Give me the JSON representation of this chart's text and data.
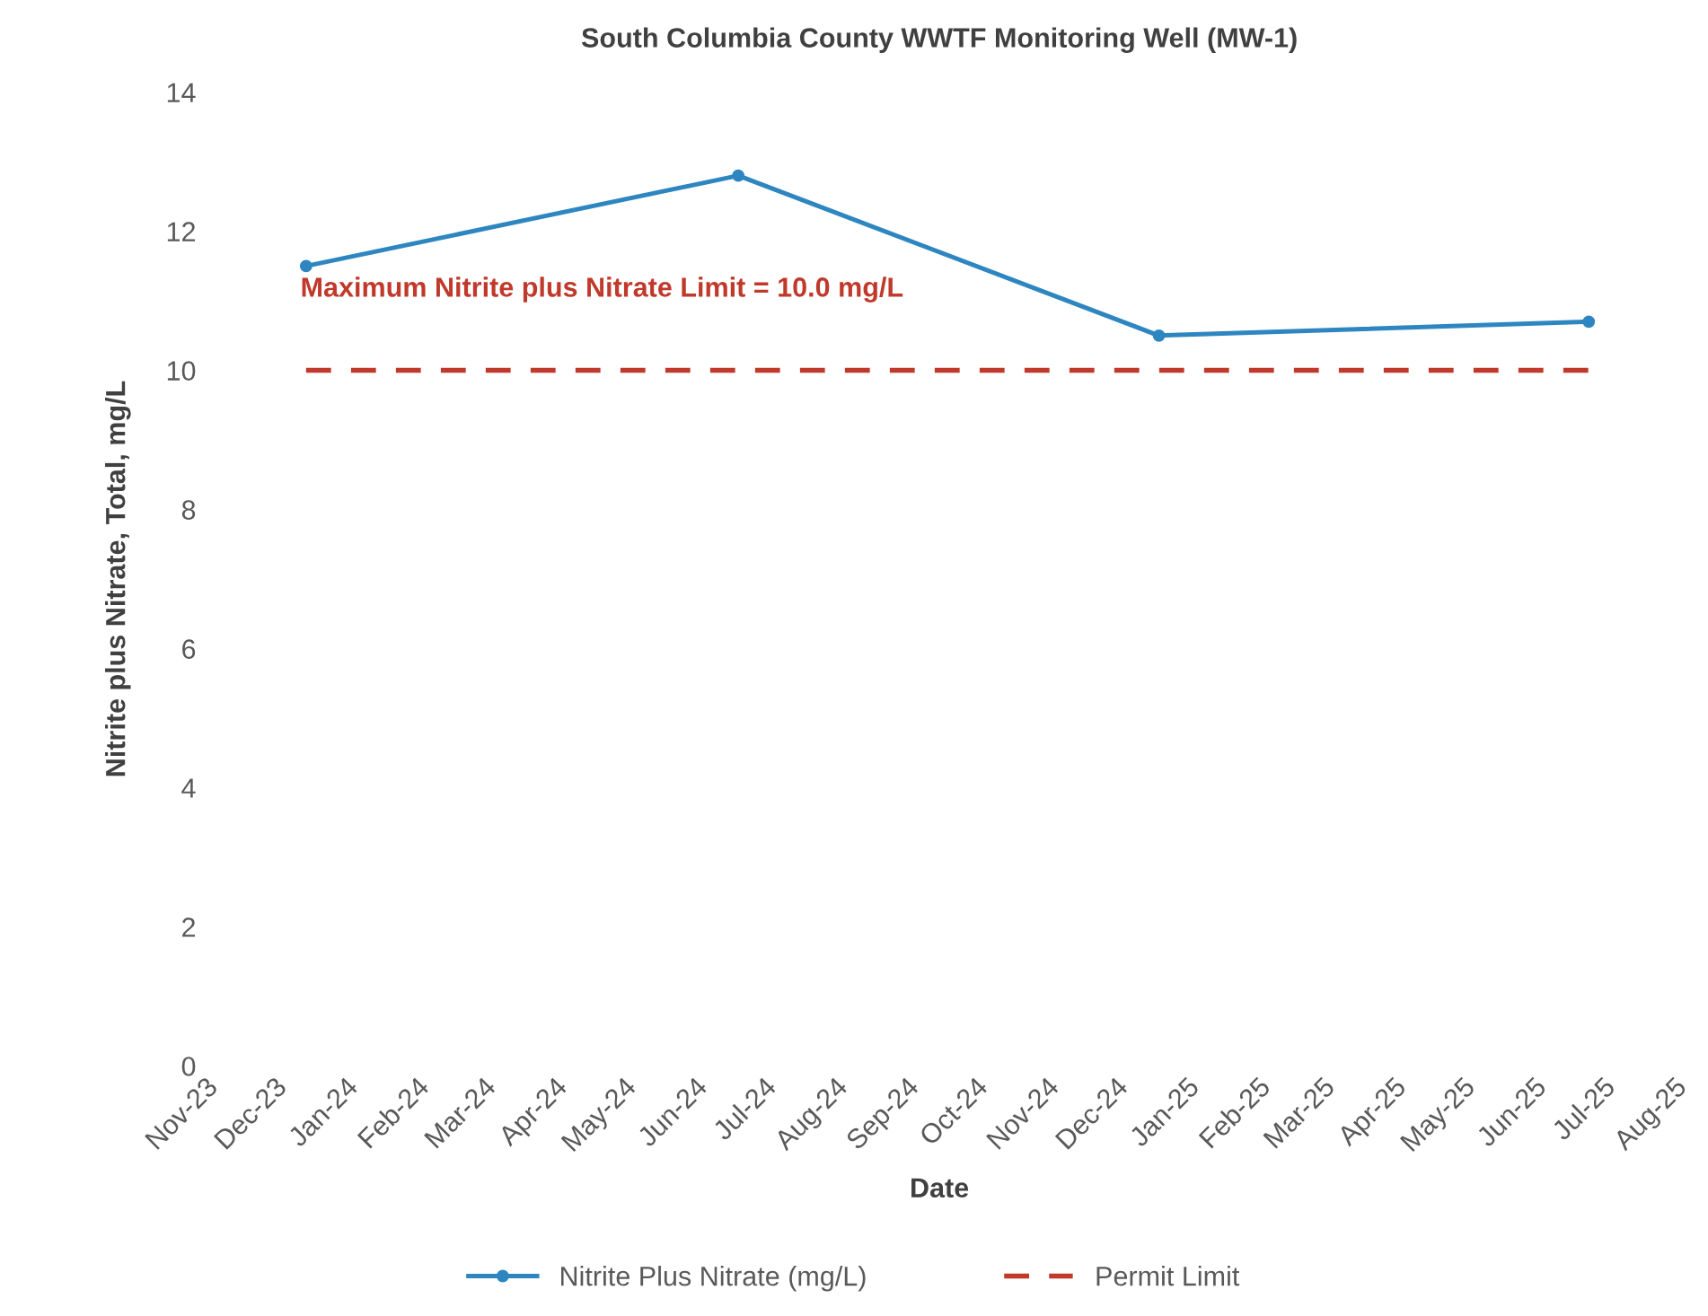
{
  "chart_data": {
    "type": "line",
    "title": "South Columbia County WWTF Monitoring Well (MW-1)",
    "xlabel": "Date",
    "ylabel": "Nitrite plus Nitrate, Total, mg/L",
    "x": [
      "2023-12-15",
      "2024-06-20",
      "2024-12-20",
      "2025-06-25"
    ],
    "series": [
      {
        "name": "Nitrite Plus Nitrate (mg/L)",
        "color": "#2e86c1",
        "values": [
          11.5,
          12.8,
          10.5,
          10.7
        ],
        "marker": "circle",
        "line_style": "solid"
      },
      {
        "name": "Permit Limit",
        "color": "#c0392b",
        "values": [
          10,
          10,
          10,
          10
        ],
        "marker": "none",
        "line_style": "dashed"
      }
    ],
    "annotations": [
      "Maximum Nitrite plus Nitrate Limit = 10.0 mg/L"
    ],
    "ylim": [
      0,
      14
    ],
    "yticks": [
      0,
      2,
      4,
      6,
      8,
      10,
      12,
      14
    ],
    "xlim": [
      "2023-11-01",
      "2025-08-01"
    ],
    "xticks": [
      {
        "value": "2023-11-01",
        "label": "Nov-23"
      },
      {
        "value": "2023-12-01",
        "label": "Dec-23"
      },
      {
        "value": "2024-01-01",
        "label": "Jan-24"
      },
      {
        "value": "2024-02-01",
        "label": "Feb-24"
      },
      {
        "value": "2024-03-01",
        "label": "Mar-24"
      },
      {
        "value": "2024-04-01",
        "label": "Apr-24"
      },
      {
        "value": "2024-05-01",
        "label": "May-24"
      },
      {
        "value": "2024-06-01",
        "label": "Jun-24"
      },
      {
        "value": "2024-07-01",
        "label": "Jul-24"
      },
      {
        "value": "2024-08-01",
        "label": "Aug-24"
      },
      {
        "value": "2024-09-01",
        "label": "Sep-24"
      },
      {
        "value": "2024-10-01",
        "label": "Oct-24"
      },
      {
        "value": "2024-11-01",
        "label": "Nov-24"
      },
      {
        "value": "2024-12-01",
        "label": "Dec-24"
      },
      {
        "value": "2025-01-01",
        "label": "Jan-25"
      },
      {
        "value": "2025-02-01",
        "label": "Feb-25"
      },
      {
        "value": "2025-03-01",
        "label": "Mar-25"
      },
      {
        "value": "2025-04-01",
        "label": "Apr-25"
      },
      {
        "value": "2025-05-01",
        "label": "May-25"
      },
      {
        "value": "2025-06-01",
        "label": "Jun-25"
      },
      {
        "value": "2025-07-01",
        "label": "Jul-25"
      },
      {
        "value": "2025-08-01",
        "label": "Aug-25"
      }
    ],
    "grid": false,
    "legend": "bottom"
  }
}
